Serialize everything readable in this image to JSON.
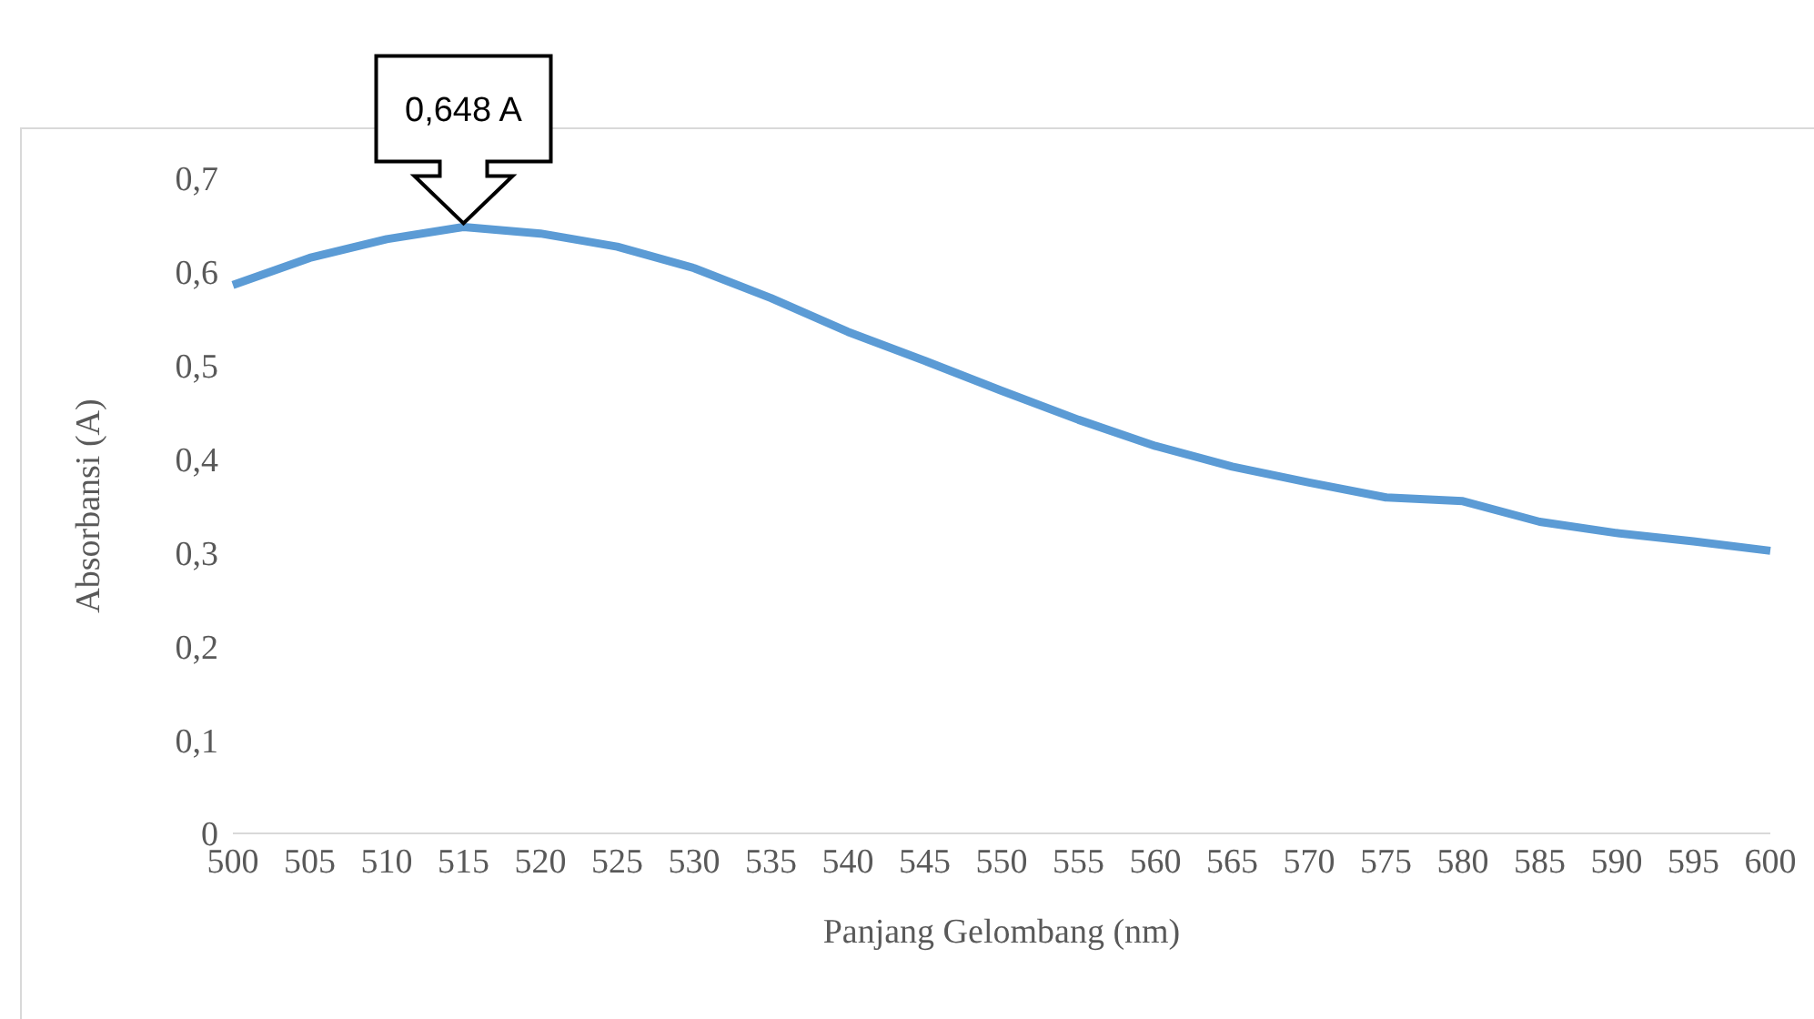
{
  "chart_data": {
    "type": "line",
    "xlabel": "Panjang Gelombang (nm)",
    "ylabel": "Absorbansi (A)",
    "categories": [
      "500",
      "505",
      "510",
      "515",
      "520",
      "525",
      "530",
      "535",
      "540",
      "545",
      "550",
      "555",
      "560",
      "565",
      "570",
      "575",
      "580",
      "585",
      "590",
      "595",
      "600"
    ],
    "series": [
      {
        "color": "#5b9bd5",
        "values": [
          0.586,
          0.615,
          0.635,
          0.648,
          0.641,
          0.627,
          0.604,
          0.572,
          0.536,
          0.505,
          0.473,
          0.442,
          0.414,
          0.392,
          0.375,
          0.359,
          0.355,
          0.333,
          0.321,
          0.312,
          0.302
        ]
      }
    ],
    "ylim": [
      0,
      0.7
    ],
    "yticks": [
      {
        "value": 0,
        "label": "0"
      },
      {
        "value": 0.1,
        "label": "0,1"
      },
      {
        "value": 0.2,
        "label": "0,2"
      },
      {
        "value": 0.3,
        "label": "0,3"
      },
      {
        "value": 0.4,
        "label": "0,4"
      },
      {
        "value": 0.5,
        "label": "0,5"
      },
      {
        "value": 0.6,
        "label": "0,6"
      },
      {
        "value": 0.7,
        "label": "0,7"
      }
    ],
    "grid": false,
    "legend": false,
    "marker": "none",
    "line_style": "solid",
    "annotations": [
      {
        "text": "0,648 A",
        "x": "515",
        "y": 0.648
      }
    ]
  }
}
